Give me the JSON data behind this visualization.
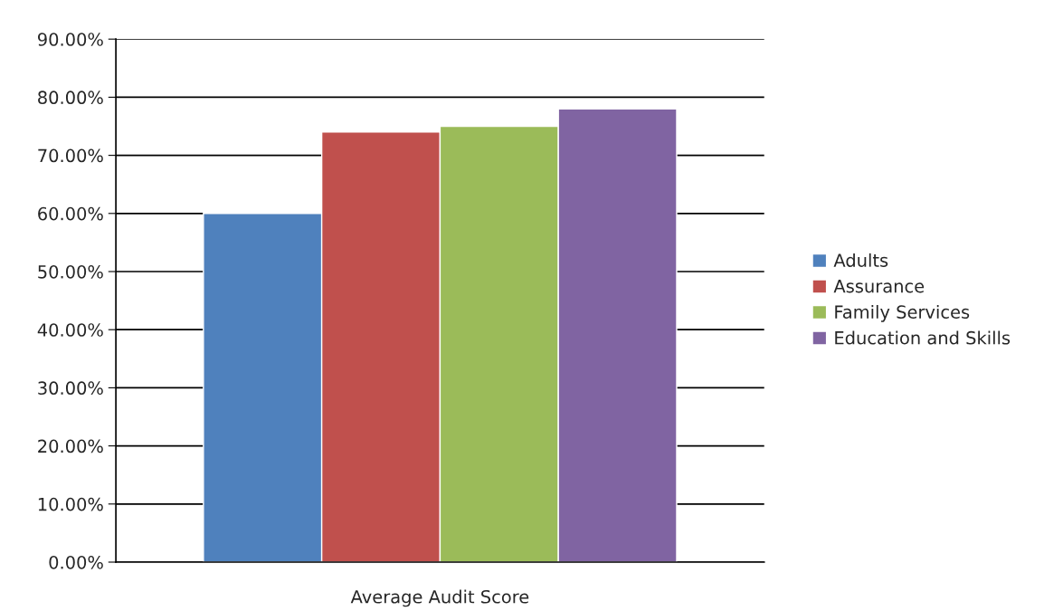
{
  "chart_data": {
    "type": "bar",
    "categories": [
      "Average Audit Score"
    ],
    "series": [
      {
        "name": "Adults",
        "color": "#4f81bd",
        "values": [
          60
        ]
      },
      {
        "name": "Assurance",
        "color": "#c0504d",
        "values": [
          74
        ]
      },
      {
        "name": "Family Services",
        "color": "#9bbb59",
        "values": [
          75
        ]
      },
      {
        "name": "Education and Skills",
        "color": "#8064a2",
        "values": [
          78
        ]
      }
    ],
    "ylim": [
      0,
      90
    ],
    "yticks": [
      {
        "value": 0,
        "label": "0.00%"
      },
      {
        "value": 10,
        "label": "10.00%"
      },
      {
        "value": 20,
        "label": "20.00%"
      },
      {
        "value": 30,
        "label": "30.00%"
      },
      {
        "value": 40,
        "label": "40.00%"
      },
      {
        "value": 50,
        "label": "50.00%"
      },
      {
        "value": 60,
        "label": "60.00%"
      },
      {
        "value": 70,
        "label": "70.00%"
      },
      {
        "value": 80,
        "label": "80.00%"
      },
      {
        "value": 90,
        "label": "90.00%"
      }
    ],
    "grid": "y",
    "legend": "right"
  }
}
